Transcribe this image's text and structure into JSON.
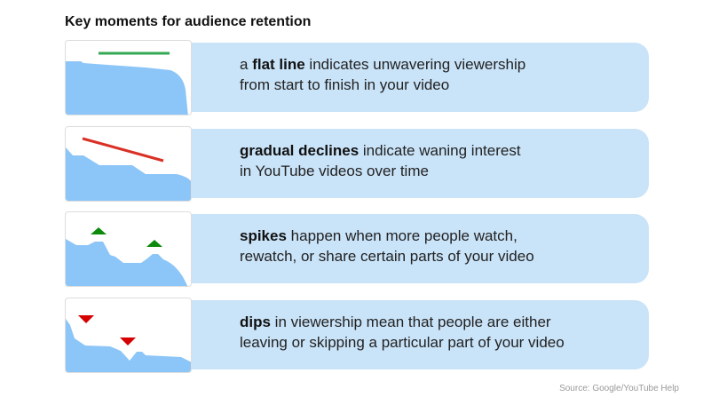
{
  "title": "Key moments for audience retention",
  "colors": {
    "area": "#8cc5f8",
    "panel": "#c9e3f8",
    "flat": "#34a853",
    "decline": "#d93025",
    "spike": "#0b8a0b",
    "dip": "#d50000"
  },
  "rows": [
    {
      "icon": "flat-line-chart",
      "pre": "a ",
      "bold": "flat line",
      "rest": " indicates unwavering viewership",
      "line2": "from start to finish in your video"
    },
    {
      "icon": "gradual-decline-chart",
      "pre": "",
      "bold": "gradual declines",
      "rest": " indicate waning interest",
      "line2": "in YouTube videos over time"
    },
    {
      "icon": "spikes-chart",
      "pre": "",
      "bold": "spikes",
      "rest": " happen when more people watch,",
      "line2": "rewatch, or share certain parts of your video"
    },
    {
      "icon": "dips-chart",
      "pre": "",
      "bold": "dips",
      "rest": " in viewership mean that people are either",
      "line2": "leaving or skipping a particular part of your video"
    }
  ],
  "source": "Source: Google/YouTube Help"
}
